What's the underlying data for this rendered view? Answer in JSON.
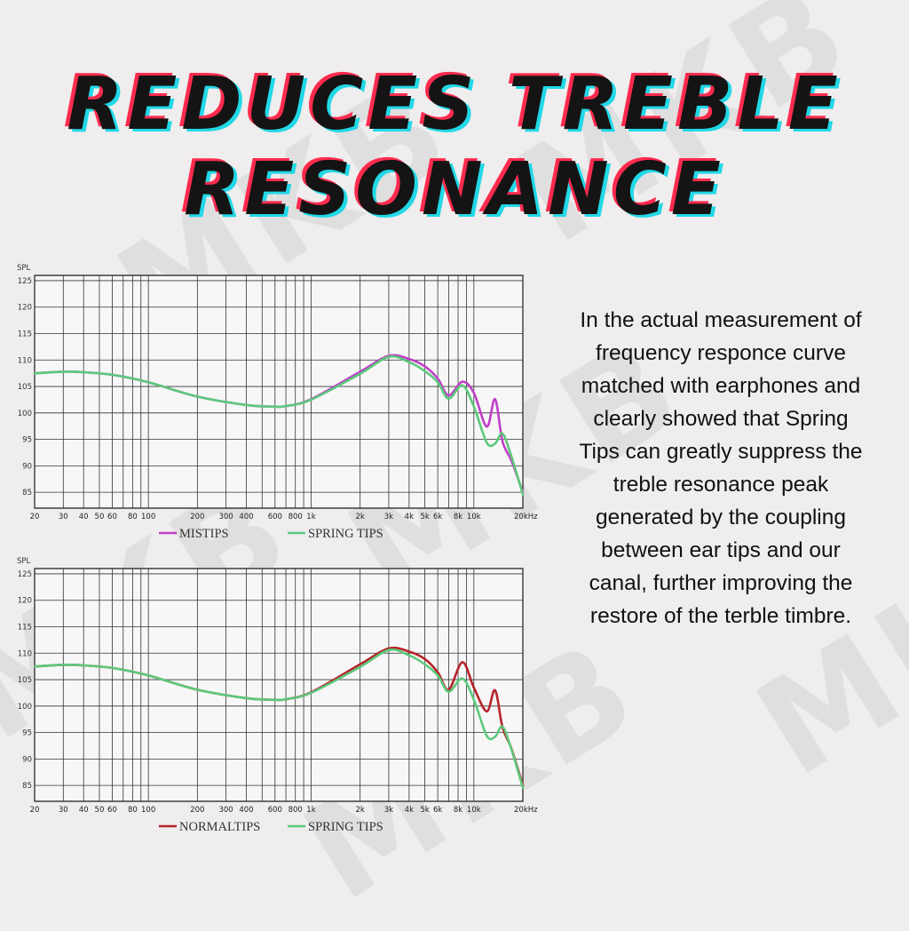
{
  "heading": {
    "line1": "REDUCES TREBLE",
    "line2": "RESONANCE"
  },
  "watermark_text": "MKB",
  "description": "In the actual measurement of frequency responce curve matched with earphones and clearly showed that Spring Tips can greatly suppress the treble resonance peak generated by the coupling between ear tips and our canal, further improving the restore of the terble timbre.",
  "chart_data": [
    {
      "type": "line",
      "xscale": "log",
      "ylabel": "SPL",
      "xlim": [
        20,
        20000
      ],
      "ylim": [
        82,
        126
      ],
      "yticks": [
        125,
        120,
        115,
        110,
        105,
        100,
        95,
        90,
        85
      ],
      "xticks": [
        "20",
        "30",
        "40",
        "50",
        "60",
        "80",
        "100",
        "200",
        "300",
        "400",
        "600",
        "800",
        "1k",
        "2k",
        "3k",
        "4k",
        "5k",
        "6k",
        "8k",
        "10k",
        "20kHz"
      ],
      "grid": true,
      "legend": "bottom",
      "x": [
        20,
        30,
        40,
        60,
        100,
        200,
        400,
        600,
        700,
        1000,
        2000,
        3000,
        4000,
        5000,
        6000,
        7000,
        8500,
        10000,
        12000,
        13500,
        15000,
        17000,
        20000
      ],
      "series": [
        {
          "name": "MISTIPS",
          "color": "#c03fc8",
          "values": [
            107.5,
            107.8,
            107.7,
            107.2,
            105.8,
            103.1,
            101.5,
            101.2,
            101.3,
            102.6,
            107.8,
            110.8,
            110.2,
            108.8,
            106.5,
            103.3,
            105.9,
            103.8,
            97.4,
            102.6,
            94.6,
            91.0,
            85.0
          ]
        },
        {
          "name": "SPRING TIPS",
          "color": "#5cc97c",
          "values": [
            107.5,
            107.8,
            107.7,
            107.2,
            105.8,
            103.1,
            101.5,
            101.2,
            101.3,
            102.5,
            107.4,
            110.6,
            109.6,
            107.9,
            105.8,
            102.7,
            105.2,
            101.2,
            94.4,
            94.2,
            96.1,
            91.8,
            84.6
          ]
        }
      ]
    },
    {
      "type": "line",
      "xscale": "log",
      "ylabel": "SPL",
      "xlim": [
        20,
        20000
      ],
      "ylim": [
        82,
        126
      ],
      "yticks": [
        125,
        120,
        115,
        110,
        105,
        100,
        95,
        90,
        85
      ],
      "xticks": [
        "20",
        "30",
        "40",
        "50",
        "60",
        "80",
        "100",
        "200",
        "300",
        "400",
        "600",
        "800",
        "1k",
        "2k",
        "3k",
        "4k",
        "5k",
        "6k",
        "8k",
        "10k",
        "20kHz"
      ],
      "grid": true,
      "legend": "bottom",
      "x": [
        20,
        30,
        40,
        60,
        100,
        200,
        400,
        600,
        700,
        1000,
        2000,
        3000,
        4000,
        5000,
        6000,
        7000,
        8500,
        10000,
        12000,
        13500,
        15000,
        17000,
        20000
      ],
      "series": [
        {
          "name": "NORMALTIPS",
          "color": "#b5232b",
          "values": [
            107.5,
            107.8,
            107.7,
            107.2,
            105.8,
            103.1,
            101.5,
            101.2,
            101.3,
            102.6,
            107.9,
            110.9,
            110.3,
            108.9,
            106.4,
            103.1,
            108.3,
            103.5,
            99.0,
            103.0,
            96.0,
            92.0,
            85.0
          ]
        },
        {
          "name": "SPRING TIPS",
          "color": "#5cc97c",
          "values": [
            107.5,
            107.8,
            107.7,
            107.2,
            105.8,
            103.1,
            101.5,
            101.2,
            101.3,
            102.5,
            107.4,
            110.6,
            109.6,
            107.9,
            105.8,
            102.7,
            105.2,
            101.2,
            94.4,
            94.2,
            96.1,
            91.8,
            84.6
          ]
        }
      ]
    }
  ]
}
